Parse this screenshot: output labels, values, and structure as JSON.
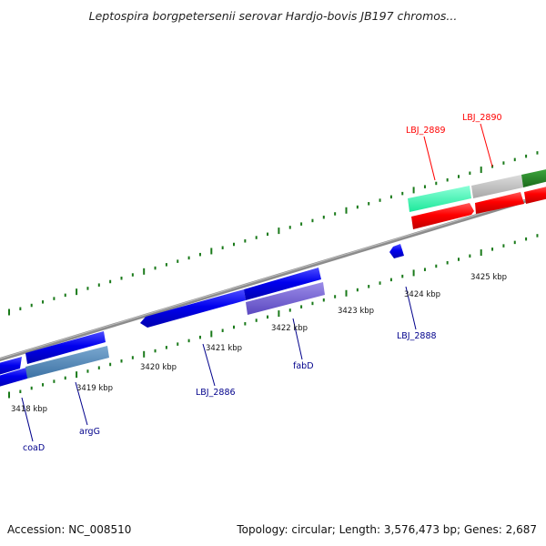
{
  "title": "Leptospira borgpetersenii serovar Hardjo-bovis JB197 chromos...",
  "footer": {
    "accession": "Accession: NC_008510",
    "summary": "Topology: circular; Length: 3,576,473 bp; Genes: 2,687"
  },
  "colors": {
    "backbone": "#8c8c8c",
    "tick": "#1a7a1a",
    "forward_label": "#cc0000",
    "reverse_label": "#00008b",
    "scale_label": "#111111"
  },
  "scale": {
    "unit": "kbp",
    "labels": [
      "3418 kbp",
      "3419 kbp",
      "3420 kbp",
      "3421 kbp",
      "3422 kbp",
      "3423 kbp",
      "3424 kbp",
      "3425 kbp"
    ]
  },
  "genes": [
    {
      "label": "LBJ_2889",
      "strand": "forward",
      "color": "#ff0000"
    },
    {
      "label": "LBJ_2890",
      "strand": "forward",
      "color": "#ff0000"
    },
    {
      "label": "coaD",
      "strand": "reverse",
      "color": "#00008b"
    },
    {
      "label": "argG",
      "strand": "reverse",
      "color": "#00008b"
    },
    {
      "label": "LBJ_2886",
      "strand": "reverse",
      "color": "#00008b"
    },
    {
      "label": "fabD",
      "strand": "reverse",
      "color": "#00008b"
    },
    {
      "label": "LBJ_2888",
      "strand": "reverse",
      "color": "#00008b"
    }
  ]
}
